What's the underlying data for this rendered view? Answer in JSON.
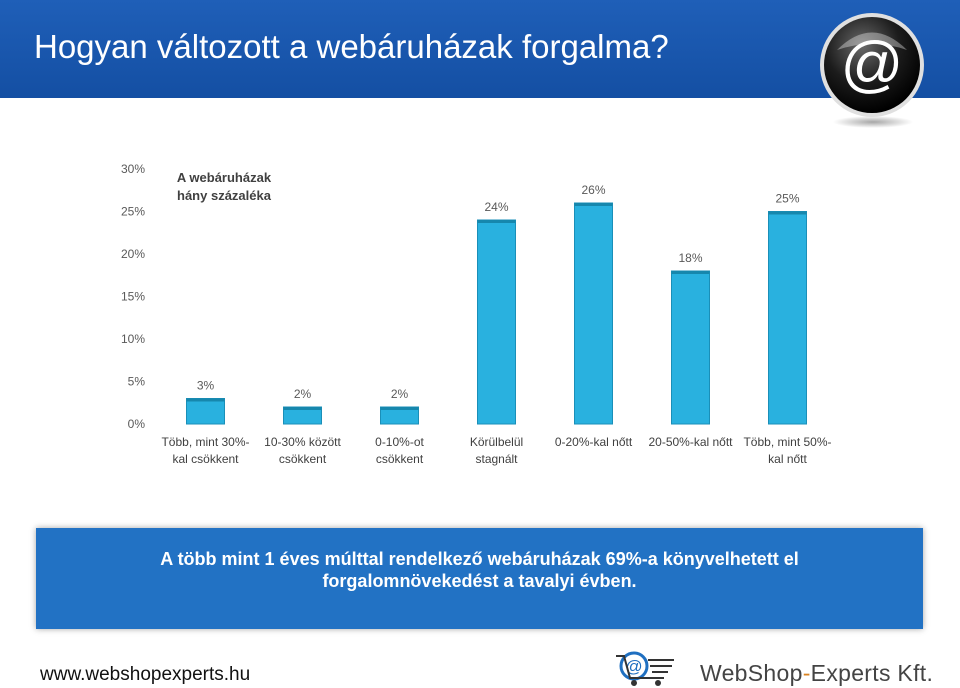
{
  "page": {
    "title": "Hogyan változott a webáruházak forgalma?",
    "banner_line1": "A több mint 1 éves múlttal rendelkező webáruházak 69%-a könyvelhetett el",
    "banner_line2": "forgalomnövekedést a tavalyi évben.",
    "footer_url": "www.webshopexperts.hu",
    "brand_part1": "WebShop",
    "brand_dash": "-",
    "brand_part2": "Experts Kft.",
    "logo_icon": "at-sign-icon",
    "cart_icon": "shopping-cart-icon"
  },
  "colors": {
    "header": "#1a58ad",
    "bar": "#29b1df",
    "bar_dark": "#1a8fb8",
    "banner": "#2272c4"
  },
  "chart_data": {
    "type": "bar",
    "ylabel": "A webáruházak hány százaléka",
    "ylabel_lines": [
      "A webáruházak",
      "hány százaléka"
    ],
    "ylim": [
      0,
      30
    ],
    "yticks": [
      "0%",
      "5%",
      "10%",
      "15%",
      "20%",
      "25%",
      "30%"
    ],
    "categories": [
      [
        "Több, mint 30%-",
        "kal csökkent"
      ],
      [
        "10-30% között",
        "csökkent"
      ],
      [
        "0-10%-ot",
        "csökkent"
      ],
      [
        "Körülbelül",
        "stagnált"
      ],
      [
        "0-20%-kal nőtt"
      ],
      [
        "20-50%-kal nőtt"
      ],
      [
        "Több, mint 50%-",
        "kal nőtt"
      ]
    ],
    "values": [
      3,
      2,
      2,
      24,
      26,
      18,
      25
    ],
    "data_labels": [
      "3%",
      "2%",
      "2%",
      "24%",
      "26%",
      "18%",
      "25%"
    ],
    "grid": false,
    "legend": "none"
  }
}
